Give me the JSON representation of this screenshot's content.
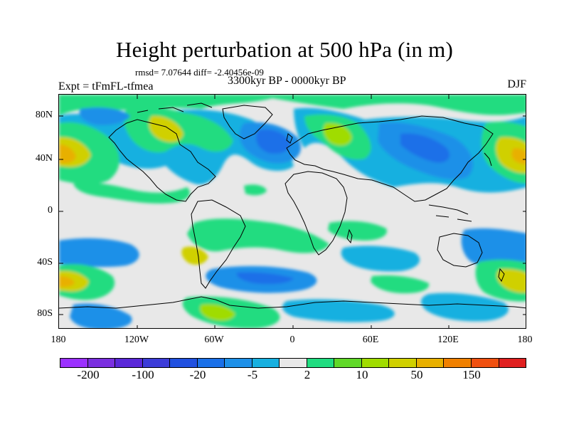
{
  "title": "Height perturbation at 500 hPa (in m)",
  "stats": "rmsd= 7.07644 diff= -2.40456e-09",
  "experiment": "Expt = tFmFL-tfmea",
  "period": "3300kyr BP - 0000kyr BP",
  "season": "DJF",
  "map": {
    "lat_labels": [
      "80N",
      "40N",
      "0",
      "40S",
      "80S"
    ],
    "lon_labels": [
      "180",
      "120W",
      "60W",
      "0",
      "60E",
      "120E",
      "180"
    ],
    "background_color": "#e8e8e8"
  },
  "colorbar": {
    "colors": [
      "#9b30ff",
      "#7a2fe0",
      "#5a28d8",
      "#3c3cd8",
      "#2050e0",
      "#1a70e8",
      "#1e90e8",
      "#18b0e0",
      "#e8e8e8",
      "#20dc80",
      "#60d828",
      "#a0dc00",
      "#d0d000",
      "#e8b000",
      "#f08000",
      "#f05010",
      "#e02020"
    ],
    "labels": [
      "-200",
      "-100",
      "-20",
      "-5",
      "2",
      "10",
      "50",
      "150"
    ]
  }
}
